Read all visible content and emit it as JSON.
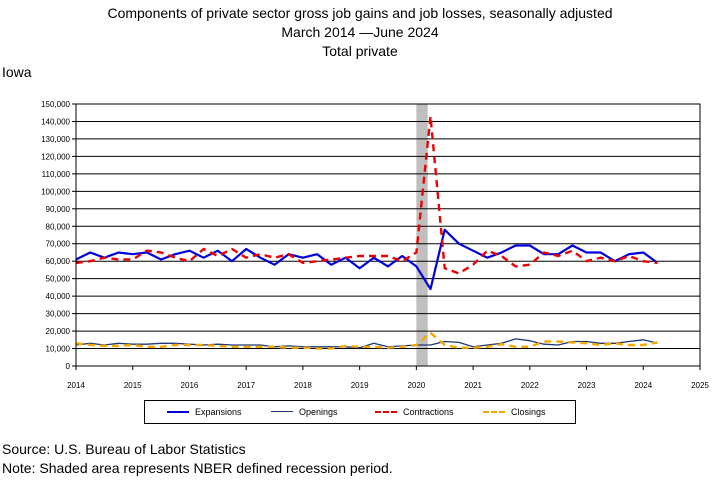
{
  "title": {
    "line1": "Components of private sector gross job gains and job losses, seasonally adjusted",
    "line2": "March 2014 —June 2024",
    "line3": "Total private"
  },
  "state_label": "Iowa",
  "footer": {
    "source": "Source: U.S. Bureau of Labor Statistics",
    "note": "Note: Shaded area represents NBER defined recession period."
  },
  "colors": {
    "expansions": "#0000dd",
    "openings": "#1f3a7a",
    "contractions": "#ee0000",
    "closings": "#f5a800",
    "recession": "#bfbfbf"
  },
  "chart_data": {
    "type": "line",
    "xlim": [
      2014,
      2025
    ],
    "ylim": [
      0,
      150000
    ],
    "x_ticks": [
      "2014",
      "2015",
      "2016",
      "2017",
      "2018",
      "2019",
      "2020",
      "2021",
      "2022",
      "2023",
      "2024",
      "2025"
    ],
    "y_ticks": [
      "0",
      "10,000",
      "20,000",
      "30,000",
      "40,000",
      "50,000",
      "60,000",
      "70,000",
      "80,000",
      "90,000",
      "100,000",
      "110,000",
      "120,000",
      "130,000",
      "140,000",
      "150,000"
    ],
    "grid": true,
    "recession_shading": [
      2020.0,
      2020.2
    ],
    "x": [
      2014.0,
      2014.25,
      2014.5,
      2014.75,
      2015.0,
      2015.25,
      2015.5,
      2015.75,
      2016.0,
      2016.25,
      2016.5,
      2016.75,
      2017.0,
      2017.25,
      2017.5,
      2017.75,
      2018.0,
      2018.25,
      2018.5,
      2018.75,
      2019.0,
      2019.25,
      2019.5,
      2019.75,
      2020.0,
      2020.25,
      2020.5,
      2020.75,
      2021.0,
      2021.25,
      2021.5,
      2021.75,
      2022.0,
      2022.25,
      2022.5,
      2022.75,
      2023.0,
      2023.25,
      2023.5,
      2023.75,
      2024.0,
      2024.25
    ],
    "series": [
      {
        "name": "Expansions",
        "style": "solid-thick",
        "values": [
          61000,
          65000,
          62000,
          65000,
          64000,
          65000,
          61000,
          64000,
          66000,
          62000,
          66000,
          60000,
          67000,
          62000,
          58000,
          64000,
          62000,
          64000,
          58000,
          62000,
          56000,
          62000,
          57000,
          63000,
          57000,
          44000,
          78000,
          70000,
          66000,
          62000,
          65000,
          69000,
          69000,
          64000,
          64000,
          69000,
          65000,
          65000,
          60000,
          64000,
          65000,
          59000
        ]
      },
      {
        "name": "Openings",
        "style": "solid-thin",
        "values": [
          12000,
          13000,
          12000,
          13000,
          12500,
          12500,
          13000,
          13000,
          12500,
          12000,
          12500,
          12000,
          12000,
          12000,
          11000,
          11500,
          11000,
          11000,
          11000,
          11000,
          10500,
          13000,
          11000,
          11500,
          12000,
          12000,
          14000,
          13500,
          11000,
          12000,
          13000,
          15500,
          14500,
          12500,
          12000,
          14000,
          14000,
          13000,
          13000,
          14000,
          15000,
          13000
        ]
      },
      {
        "name": "Contractions",
        "style": "dashed-thick",
        "values": [
          59000,
          60000,
          62000,
          61000,
          61000,
          66000,
          65000,
          62000,
          60000,
          67000,
          63000,
          67000,
          62000,
          64000,
          62000,
          64000,
          59000,
          60000,
          61000,
          62000,
          63000,
          63000,
          63000,
          60000,
          65000,
          143000,
          56000,
          53000,
          58000,
          66000,
          63000,
          57000,
          58000,
          65000,
          63000,
          66000,
          60000,
          62000,
          60000,
          63000,
          60000,
          59000
        ]
      },
      {
        "name": "Closings",
        "style": "dashed-thick",
        "values": [
          13000,
          12000,
          11500,
          11500,
          12000,
          11000,
          11000,
          12000,
          12000,
          12000,
          11500,
          11000,
          11000,
          11000,
          11000,
          10500,
          10500,
          10000,
          10000,
          11500,
          11000,
          11000,
          10500,
          11000,
          12000,
          19000,
          12000,
          10500,
          10500,
          11000,
          12500,
          11000,
          11000,
          14000,
          14000,
          13500,
          13000,
          12000,
          13000,
          12000,
          12000,
          13500
        ]
      }
    ]
  }
}
